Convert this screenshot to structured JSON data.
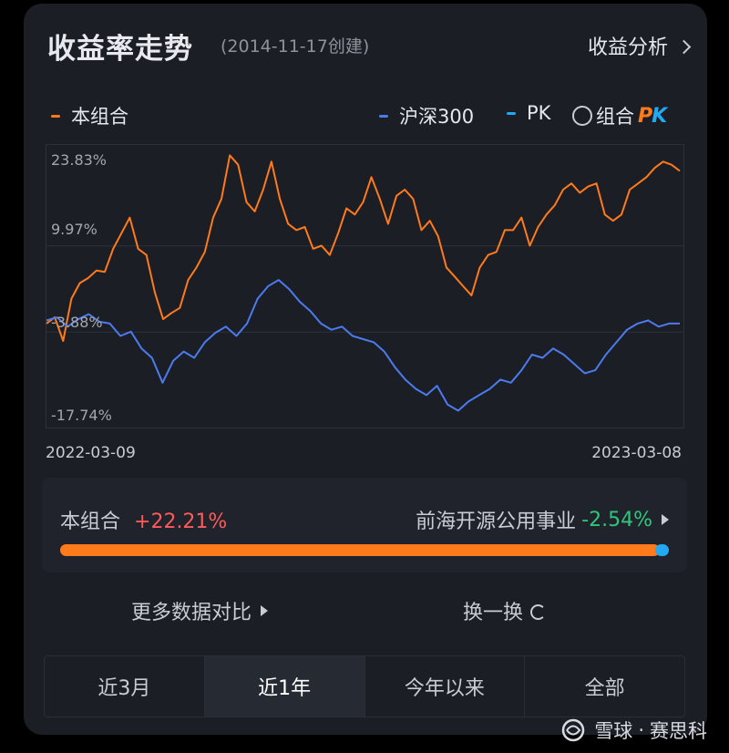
{
  "header": {
    "title": "收益率走势",
    "subtitle": "(2014-11-17创建)",
    "analysis_link": "收益分析"
  },
  "legend": {
    "portfolio": "本组合",
    "benchmark": "沪深300",
    "pk": "PK",
    "pk_option": "组合",
    "pk_logo": "PK"
  },
  "colors": {
    "portfolio": "#ff7a1a",
    "benchmark": "#4b7bef",
    "pk": "#22a9f2",
    "positive": "#ff5a5a",
    "negative": "#2ec77a"
  },
  "chart_data": {
    "type": "line",
    "x_start": "2022-03-09",
    "x_end": "2023-03-08",
    "ytick_labels": [
      "23.83%",
      "9.97%",
      "-3.88%",
      "-17.74%"
    ],
    "ylim": [
      -17.74,
      23.83
    ],
    "grid": true,
    "series": [
      {
        "name": "本组合",
        "color": "#ff7a1a",
        "values": [
          -2.5,
          -1.5,
          -5.3,
          1.5,
          4.0,
          4.8,
          6.0,
          5.8,
          9.5,
          12.0,
          14.5,
          9.5,
          8.5,
          2.5,
          -1.8,
          -0.8,
          0.0,
          4.5,
          6.5,
          9.0,
          14.5,
          17.5,
          24.5,
          23.0,
          17.0,
          15.5,
          19.0,
          23.5,
          17.5,
          13.5,
          12.5,
          13.0,
          9.5,
          10.0,
          8.5,
          12.0,
          16.0,
          15.0,
          17.0,
          21.0,
          17.5,
          13.5,
          18.0,
          19.0,
          17.5,
          12.5,
          14.0,
          11.5,
          6.5,
          5.0,
          3.5,
          2.0,
          6.5,
          8.5,
          9.0,
          12.5,
          12.5,
          14.5,
          10.0,
          13.0,
          15.0,
          16.5,
          19.0,
          20.0,
          18.5,
          19.5,
          20.0,
          15.0,
          14.0,
          15.0,
          19.0,
          20.0,
          21.0,
          22.5,
          23.5,
          23.0,
          22.0
        ]
      },
      {
        "name": "沪深300",
        "color": "#4b7bef",
        "values": [
          -2.0,
          -1.5,
          -3.0,
          -1.8,
          -1.0,
          -2.2,
          -2.5,
          -4.5,
          -3.8,
          -6.5,
          -8.0,
          -12.0,
          -8.5,
          -7.0,
          -8.0,
          -5.5,
          -4.0,
          -3.0,
          -4.5,
          -2.5,
          1.5,
          3.5,
          4.5,
          3.0,
          1.0,
          -0.5,
          -2.5,
          -3.5,
          -3.0,
          -4.5,
          -5.0,
          -5.5,
          -7.0,
          -9.5,
          -11.5,
          -13.0,
          -14.0,
          -12.5,
          -15.5,
          -16.5,
          -15.0,
          -14.0,
          -13.0,
          -11.5,
          -12.0,
          -10.0,
          -7.5,
          -8.0,
          -6.5,
          -7.5,
          -9.0,
          -10.5,
          -10.0,
          -7.5,
          -5.5,
          -3.5,
          -2.5,
          -2.0,
          -3.0,
          -2.5,
          -2.5
        ]
      }
    ]
  },
  "pk": {
    "portfolio_label": "本组合",
    "portfolio_value": "+22.21%",
    "fund_label": "前海开源公用事业",
    "fund_value": "-2.54%",
    "portfolio_share": 0.985
  },
  "actions": {
    "more_compare": "更多数据对比",
    "switch": "换一换"
  },
  "tabs": [
    {
      "label": "近3月",
      "active": false
    },
    {
      "label": "近1年",
      "active": true
    },
    {
      "label": "今年以来",
      "active": false
    },
    {
      "label": "全部",
      "active": false
    }
  ],
  "watermark": {
    "brand": "雪球",
    "author": "赛思科"
  }
}
